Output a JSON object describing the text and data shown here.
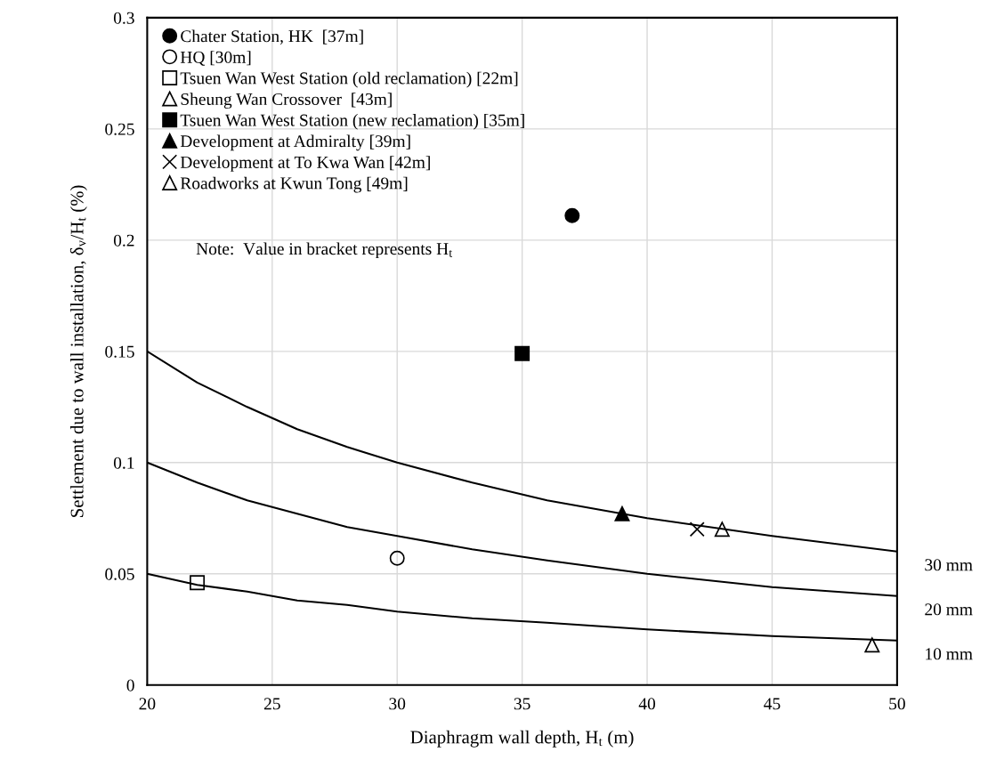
{
  "chart_data": {
    "type": "scatter",
    "xlabel": "Diaphragm wall depth, H$_{t}$ (m)",
    "ylabel": "Settlement due to wall installation, δ$_{v}$/H$_{t}$ (%)",
    "xlim": [
      20,
      50
    ],
    "xticks": [
      20,
      25,
      30,
      35,
      40,
      45,
      50
    ],
    "ylim": [
      0,
      0.3
    ],
    "yticks": [
      0,
      0.05,
      0.1,
      0.15,
      0.2,
      0.25,
      0.3
    ],
    "grid": true,
    "legend": "top left",
    "annotations": [
      "Note:  Value in bracket represents H$_{t}$"
    ],
    "series": [
      {
        "name": "Chater Station, HK  [37m]",
        "marker": "circle",
        "color": "#000000",
        "x": [
          37
        ],
        "values": [
          0.211
        ]
      },
      {
        "name": "HQ [30m]",
        "marker": "circle-open",
        "color": "#000000",
        "x": [
          30
        ],
        "values": [
          0.057
        ]
      },
      {
        "name": "Tsuen Wan West Station (old reclamation) [22m]",
        "marker": "square-open",
        "color": "#000000",
        "x": [
          22
        ],
        "values": [
          0.046
        ]
      },
      {
        "name": "Sheung Wan Crossover  [43m]",
        "marker": "triangle-open",
        "color": "#000000",
        "x": [
          43
        ],
        "values": [
          0.07
        ]
      },
      {
        "name": "Tsuen Wan West Station (new reclamation) [35m]",
        "marker": "square",
        "color": "#000000",
        "x": [
          35
        ],
        "values": [
          0.149
        ]
      },
      {
        "name": "Development at Admiralty [39m]",
        "marker": "triangle",
        "color": "#000000",
        "x": [
          39
        ],
        "values": [
          0.077
        ]
      },
      {
        "name": "Development at To Kwa Wan [42m]",
        "marker": "cross",
        "color": "#000000",
        "x": [
          42
        ],
        "values": [
          0.07
        ]
      },
      {
        "name": "Roadworks at Kwun Tong [49m]",
        "marker": "triangle-open",
        "color": "#000000",
        "x": [
          49
        ],
        "values": [
          0.018
        ]
      },
      {
        "name": "30 mm",
        "type": "line",
        "marker": "none",
        "color": "#000000",
        "x": [
          20,
          22,
          24,
          26,
          28,
          30,
          33,
          36,
          40,
          45,
          50
        ],
        "values": [
          0.15,
          0.136,
          0.125,
          0.115,
          0.107,
          0.1,
          0.091,
          0.083,
          0.075,
          0.067,
          0.06
        ]
      },
      {
        "name": "20 mm",
        "type": "line",
        "marker": "none",
        "color": "#000000",
        "x": [
          20,
          22,
          24,
          26,
          28,
          30,
          33,
          36,
          40,
          45,
          50
        ],
        "values": [
          0.1,
          0.091,
          0.083,
          0.077,
          0.071,
          0.067,
          0.061,
          0.056,
          0.05,
          0.044,
          0.04
        ]
      },
      {
        "name": "10 mm",
        "type": "line",
        "marker": "none",
        "color": "#000000",
        "x": [
          20,
          22,
          24,
          26,
          28,
          30,
          33,
          36,
          40,
          45,
          50
        ],
        "values": [
          0.05,
          0.045,
          0.042,
          0.038,
          0.036,
          0.033,
          0.03,
          0.028,
          0.025,
          0.022,
          0.02
        ]
      }
    ]
  }
}
